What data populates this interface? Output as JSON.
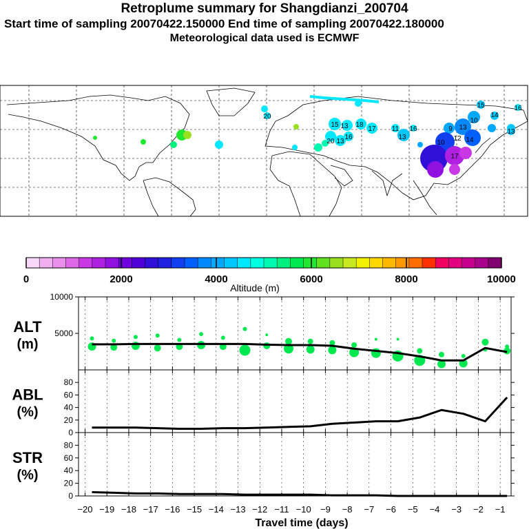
{
  "title": {
    "line1": "Retroplume summary for Shangdianzi_200704",
    "line2": "Start time of sampling 20070422.150000     End time of sampling 20070422.180000",
    "line3": "Meteorological data used is ECMWF"
  },
  "colorbar": {
    "colors": [
      "#f8d8f8",
      "#f0b0f0",
      "#e890ec",
      "#dc68e8",
      "#c838e4",
      "#b020e0",
      "#9010e0",
      "#7000e0",
      "#5000d8",
      "#3010d8",
      "#2020e0",
      "#1040f0",
      "#0060ff",
      "#0088ff",
      "#00a8ff",
      "#00c8ff",
      "#00e8ff",
      "#00ffe0",
      "#00f8b0",
      "#00f080",
      "#00e850",
      "#20e830",
      "#60e020",
      "#98e020",
      "#c8e820",
      "#f0f000",
      "#ffd800",
      "#ffb800",
      "#ff9800",
      "#ff6c00",
      "#ff3000",
      "#f00060",
      "#e00080",
      "#c80090",
      "#a80088",
      "#800070"
    ],
    "tick_labels": [
      "0",
      "2000",
      "4000",
      "6000",
      "8000",
      "10000"
    ],
    "label": "Altitude (m)"
  },
  "map": {
    "plume_labels": [
      "15",
      "16",
      "14",
      "10",
      "9",
      "13",
      "10",
      "12",
      "14",
      "16",
      "13",
      "11",
      "15",
      "13",
      "18",
      "17",
      "20",
      "13",
      "16",
      "17",
      "13",
      "20"
    ]
  },
  "chart_data": [
    {
      "type": "line",
      "panel": "ALT",
      "ylabel": "ALT\n(m)",
      "ylabel_line1": "ALT",
      "ylabel_line2": "(m)",
      "ylim": [
        0,
        10000
      ],
      "yticks": [
        5000,
        10000
      ],
      "ytick_labels": [
        "5000",
        "10000"
      ],
      "x": [
        -20,
        -19,
        -18,
        -17,
        -16,
        -15,
        -14,
        -13,
        -12,
        -11,
        -10,
        -9,
        -8,
        -7,
        -6,
        -5,
        -4,
        -3,
        -2,
        -1
      ],
      "series": [
        {
          "name": "median altitude",
          "values": [
            3500,
            3500,
            3550,
            3550,
            3550,
            3550,
            3550,
            3550,
            3450,
            3400,
            3400,
            3300,
            2900,
            2600,
            2300,
            1850,
            1300,
            1300,
            3000,
            2450
          ]
        }
      ],
      "scatter": [
        {
          "x": -20,
          "y": 3200,
          "s": 6
        },
        {
          "x": -20,
          "y": 4300,
          "s": 3
        },
        {
          "x": -19,
          "y": 3100,
          "s": 5
        },
        {
          "x": -19,
          "y": 4000,
          "s": 3
        },
        {
          "x": -18,
          "y": 3300,
          "s": 6
        },
        {
          "x": -18,
          "y": 4500,
          "s": 3
        },
        {
          "x": -17,
          "y": 3000,
          "s": 5
        },
        {
          "x": -17,
          "y": 4700,
          "s": 3
        },
        {
          "x": -16,
          "y": 3200,
          "s": 5
        },
        {
          "x": -16,
          "y": 4100,
          "s": 3
        },
        {
          "x": -15,
          "y": 3400,
          "s": 6
        },
        {
          "x": -15,
          "y": 4900,
          "s": 3
        },
        {
          "x": -14,
          "y": 3200,
          "s": 5
        },
        {
          "x": -14,
          "y": 4400,
          "s": 3
        },
        {
          "x": -13,
          "y": 2700,
          "s": 8
        },
        {
          "x": -13,
          "y": 5600,
          "s": 3
        },
        {
          "x": -12,
          "y": 3300,
          "s": 5
        },
        {
          "x": -12,
          "y": 4800,
          "s": 2
        },
        {
          "x": -11,
          "y": 2900,
          "s": 7
        },
        {
          "x": -11,
          "y": 3900,
          "s": 5
        },
        {
          "x": -10,
          "y": 2800,
          "s": 6
        },
        {
          "x": -10,
          "y": 3900,
          "s": 4
        },
        {
          "x": -9,
          "y": 2700,
          "s": 6
        },
        {
          "x": -9,
          "y": 3700,
          "s": 4
        },
        {
          "x": -8,
          "y": 2400,
          "s": 7
        },
        {
          "x": -8,
          "y": 3400,
          "s": 4
        },
        {
          "x": -7,
          "y": 2300,
          "s": 7
        },
        {
          "x": -7,
          "y": 4200,
          "s": 2
        },
        {
          "x": -6,
          "y": 1900,
          "s": 8
        },
        {
          "x": -6,
          "y": 4200,
          "s": 2
        },
        {
          "x": -5,
          "y": 1300,
          "s": 8
        },
        {
          "x": -5,
          "y": 2600,
          "s": 4
        },
        {
          "x": -4,
          "y": 800,
          "s": 6
        },
        {
          "x": -4,
          "y": 2100,
          "s": 4
        },
        {
          "x": -3,
          "y": 900,
          "s": 6
        },
        {
          "x": -3,
          "y": 1900,
          "s": 3
        },
        {
          "x": -2,
          "y": 3800,
          "s": 5
        },
        {
          "x": -2,
          "y": 2800,
          "s": 3
        },
        {
          "x": -1,
          "y": 2600,
          "s": 5
        },
        {
          "x": -1,
          "y": 3200,
          "s": 3
        }
      ],
      "marker_color": "#00e850"
    },
    {
      "type": "line",
      "panel": "ABL",
      "ylabel_line1": "ABL",
      "ylabel_line2": "(%)",
      "ylim": [
        0,
        100
      ],
      "yticks": [
        0,
        20,
        40,
        60,
        80
      ],
      "ytick_labels": [
        "0",
        "20",
        "40",
        "60",
        "80"
      ],
      "x": [
        -20,
        -19,
        -18,
        -17,
        -16,
        -15,
        -14,
        -13,
        -12,
        -11,
        -10,
        -9,
        -8,
        -7,
        -6,
        -5,
        -4,
        -3,
        -2,
        -1
      ],
      "series": [
        {
          "name": "ABL fraction",
          "values": [
            8,
            8,
            8,
            7,
            6,
            6,
            7,
            7,
            8,
            9,
            10,
            14,
            16,
            18,
            18,
            24,
            36,
            30,
            18,
            56
          ]
        }
      ]
    },
    {
      "type": "line",
      "panel": "STR",
      "ylabel_line1": "STR",
      "ylabel_line2": "(%)",
      "ylim": [
        0,
        100
      ],
      "yticks": [
        0,
        20,
        40,
        60,
        80
      ],
      "ytick_labels": [
        "0",
        "20",
        "40",
        "60",
        "80"
      ],
      "xlabel": "Travel time (days)",
      "xticks": [
        -20,
        -19,
        -18,
        -17,
        -16,
        -15,
        -14,
        -13,
        -12,
        -11,
        -10,
        -9,
        -8,
        -7,
        -6,
        -5,
        -4,
        -3,
        -2,
        -1
      ],
      "xtick_labels": [
        "−20",
        "−19",
        "−18",
        "−17",
        "−16",
        "−15",
        "−14",
        "−13",
        "−12",
        "−11",
        "−10",
        "−9",
        "−8",
        "−7",
        "−6",
        "−5",
        "−4",
        "−3",
        "−2",
        "−1"
      ],
      "x": [
        -20,
        -19,
        -18,
        -17,
        -16,
        -15,
        -14,
        -13,
        -12,
        -11,
        -10,
        -9,
        -8,
        -7,
        -6,
        -5,
        -4,
        -3,
        -2,
        -1
      ],
      "series": [
        {
          "name": "stratosphere fraction",
          "values": [
            6,
            5,
            4,
            4,
            3,
            3,
            3,
            2,
            2,
            2,
            2,
            1,
            1,
            1,
            0,
            0,
            0,
            0,
            0,
            0
          ]
        }
      ]
    }
  ]
}
